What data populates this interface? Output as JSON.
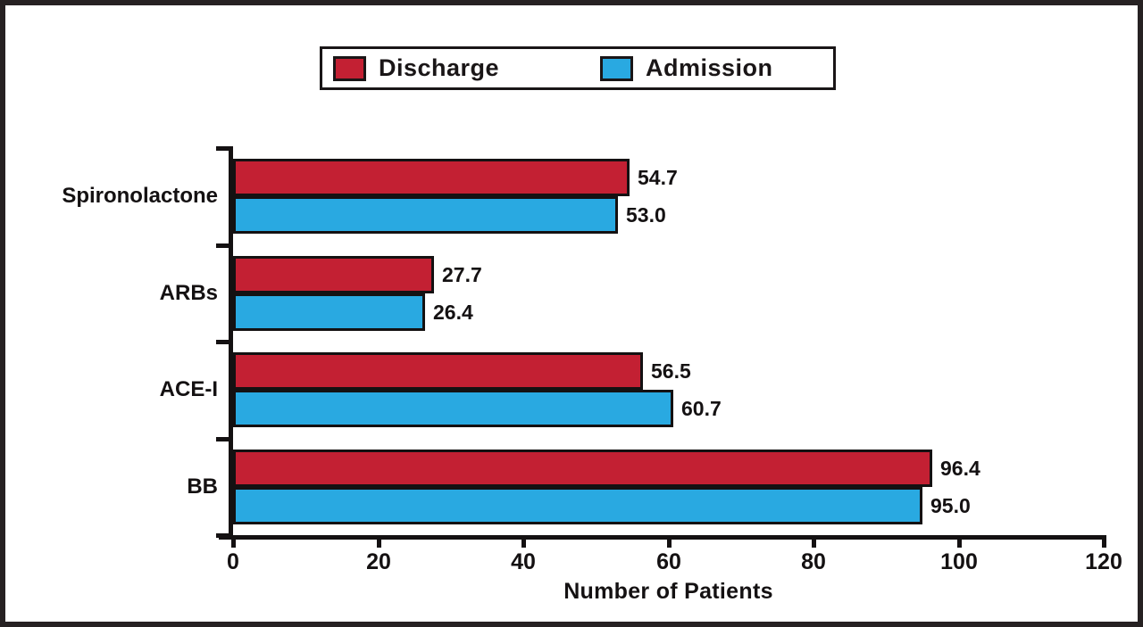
{
  "chart_data": {
    "type": "bar",
    "orientation": "horizontal",
    "title": "",
    "xlabel": "Number of Patients",
    "ylabel": "",
    "xlim": [
      0,
      120
    ],
    "xticks": [
      0,
      20,
      40,
      60,
      80,
      100,
      120
    ],
    "grid": false,
    "legend_position": "top-center",
    "value_label_decimals": 1,
    "categories": [
      "Spironolactone",
      "ARBs",
      "ACE-I",
      "BB"
    ],
    "series": [
      {
        "name": "Discharge",
        "color": "#c32033",
        "values": [
          54.7,
          27.7,
          56.5,
          96.4
        ]
      },
      {
        "name": "Admission",
        "color": "#29a9e1",
        "values": [
          53.0,
          26.4,
          60.7,
          95.0
        ]
      }
    ]
  },
  "colors": {
    "discharge_bar": "#c32033",
    "admission_bar": "#29a9e1",
    "axis_and_text": "#141112",
    "frame_border": "#262122",
    "background": "#ffffff"
  }
}
